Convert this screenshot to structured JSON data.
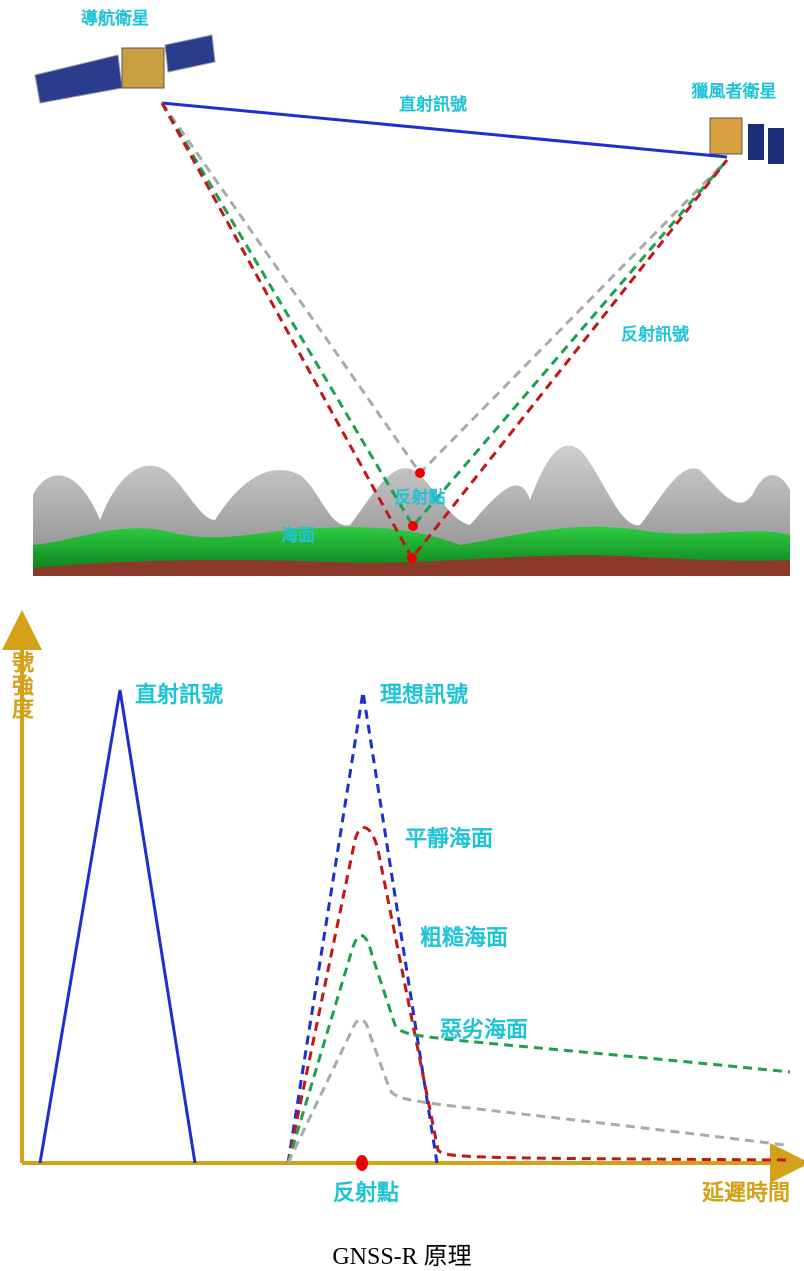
{
  "top_diagram": {
    "navigation_satellite": "導航衛星",
    "direct_signal": "直射訊號",
    "receiver_satellite": "獵風者衛星",
    "reflected_signal": "反射訊號",
    "reflection_point": "反射點",
    "sea_surface": "海面"
  },
  "bottom_diagram": {
    "y_axis_label": "訊號強度",
    "x_axis_label": "延遲時間",
    "direct_signal": "直射訊號",
    "ideal_signal": "理想訊號",
    "calm_sea": "平靜海面",
    "rough_sea": "粗糙海面",
    "severe_sea": "惡劣海面",
    "reflection_point": "反射點"
  },
  "caption": "GNSS-R 原理"
}
